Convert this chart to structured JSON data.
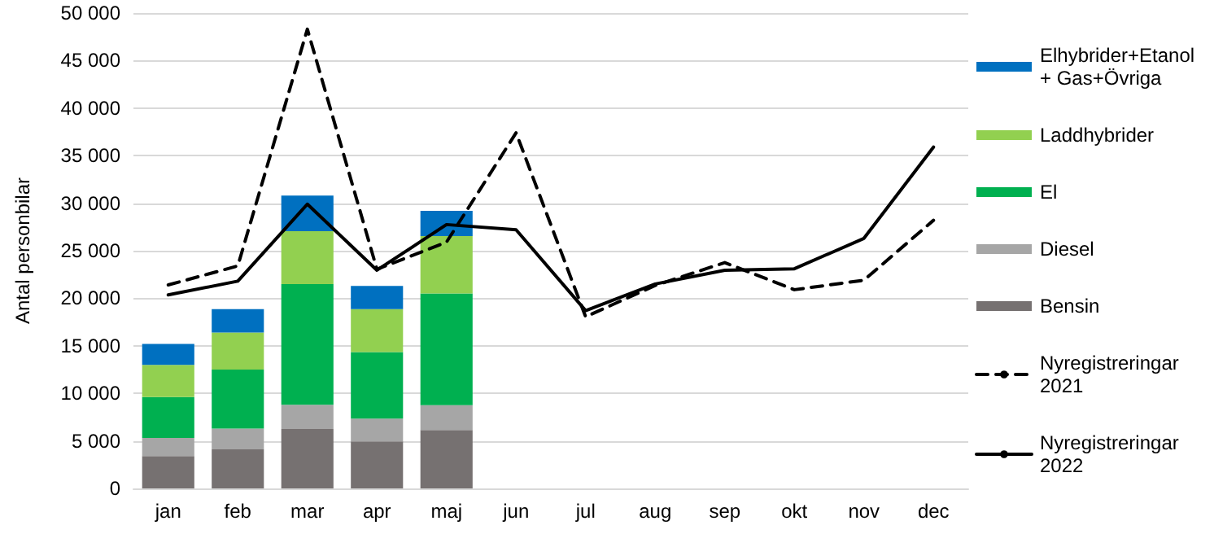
{
  "chart_data": {
    "type": "bar",
    "stacked": true,
    "ylabel": "Antal personbilar",
    "categories": [
      "jan",
      "feb",
      "mar",
      "apr",
      "maj",
      "jun",
      "jul",
      "aug",
      "sep",
      "okt",
      "nov",
      "dec"
    ],
    "series": [
      {
        "name": "Bensin",
        "color": "#767171",
        "values": [
          3400,
          4100,
          6250,
          4950,
          6150,
          null,
          null,
          null,
          null,
          null,
          null,
          null
        ]
      },
      {
        "name": "Diesel",
        "color": "#a6a6a6",
        "values": [
          1900,
          2200,
          2550,
          2400,
          2600,
          null,
          null,
          null,
          null,
          null,
          null,
          null
        ]
      },
      {
        "name": "El",
        "color": "#00b050",
        "values": [
          4300,
          6200,
          12700,
          7000,
          11750,
          null,
          null,
          null,
          null,
          null,
          null,
          null
        ]
      },
      {
        "name": "Laddhybrider",
        "color": "#92d050",
        "values": [
          3400,
          3900,
          5550,
          4500,
          6050,
          null,
          null,
          null,
          null,
          null,
          null,
          null
        ]
      },
      {
        "name": "Elhybrider+Etanol+ Gas+Övriga",
        "color": "#0070c0",
        "values": [
          2200,
          2450,
          3750,
          2450,
          2650,
          null,
          null,
          null,
          null,
          null,
          null,
          null
        ]
      },
      {
        "name": "Nyregistreringar 2021",
        "type": "line",
        "line_style": "dashed",
        "color": "#000000",
        "values": [
          21400,
          23400,
          48300,
          23050,
          25900,
          37400,
          18050,
          21350,
          23750,
          20900,
          21900,
          28200
        ]
      },
      {
        "name": "Nyregistreringar 2022",
        "type": "line",
        "line_style": "solid",
        "color": "#000000",
        "values": [
          20350,
          21800,
          29900,
          22950,
          27750,
          27200,
          18700,
          21500,
          22950,
          23100,
          26300,
          35900
        ]
      }
    ],
    "ylim": [
      0,
      50000
    ],
    "yticks": [
      {
        "value": 0,
        "label": "0"
      },
      {
        "value": 5000,
        "label": "5 000"
      },
      {
        "value": 10000,
        "label": "10 000"
      },
      {
        "value": 15000,
        "label": "15 000"
      },
      {
        "value": 20000,
        "label": "20 000"
      },
      {
        "value": 25000,
        "label": "25 000"
      },
      {
        "value": 30000,
        "label": "30 000"
      },
      {
        "value": 35000,
        "label": "35 000"
      },
      {
        "value": 40000,
        "label": "40 000"
      },
      {
        "value": 45000,
        "label": "45 000"
      },
      {
        "value": 50000,
        "label": "50 000"
      }
    ],
    "grid": "y",
    "legend": "right",
    "marker": "none"
  }
}
